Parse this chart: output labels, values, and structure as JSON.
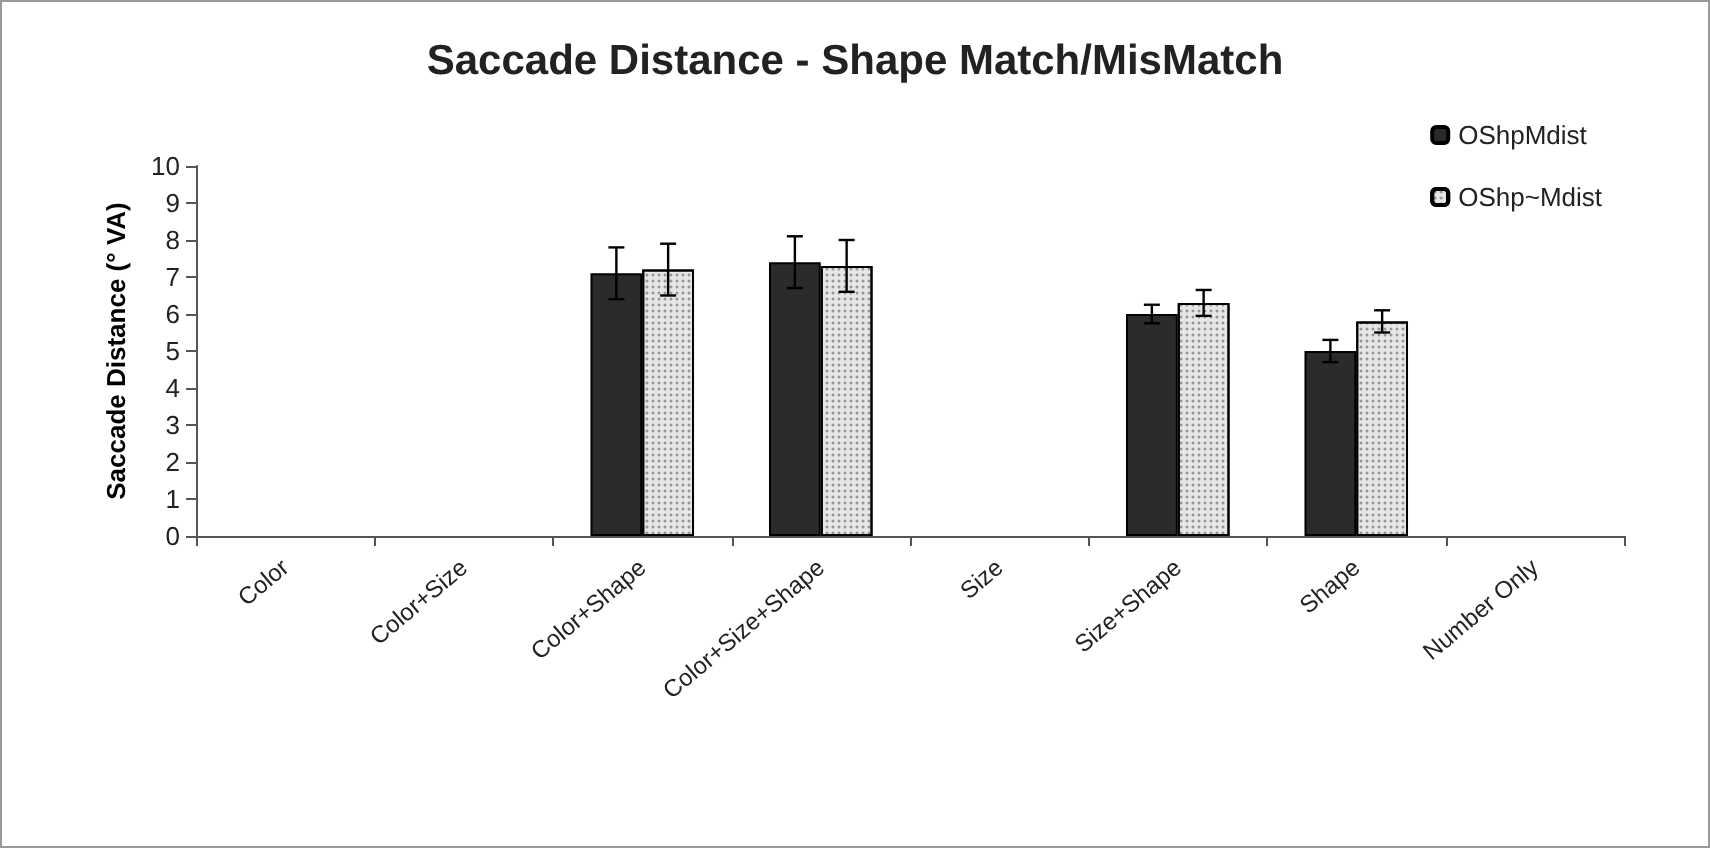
{
  "chart_data": {
    "type": "bar",
    "title": "Saccade Distance - Shape Match/MisMatch",
    "ylabel": "Saccade Distance (° VA)",
    "categories": [
      "Color",
      "Color+Size",
      "Color+Shape",
      "Color+Size+Shape",
      "Size",
      "Size+Shape",
      "Shape",
      "Number Only"
    ],
    "series": [
      {
        "name": "OShpMdist",
        "color": "#2b2b2b",
        "values": [
          null,
          null,
          7.1,
          7.4,
          null,
          6.0,
          5.0,
          null
        ],
        "errors": [
          null,
          null,
          0.7,
          0.7,
          null,
          0.25,
          0.3,
          null
        ]
      },
      {
        "name": "OShp~Mdist",
        "color": "#e6e6e6",
        "values": [
          null,
          null,
          7.2,
          7.3,
          null,
          6.3,
          5.8,
          null
        ],
        "errors": [
          null,
          null,
          0.7,
          0.7,
          null,
          0.35,
          0.3,
          null
        ]
      }
    ],
    "ylim": [
      0,
      10
    ],
    "yticks": [
      0,
      1,
      2,
      3,
      4,
      5,
      6,
      7,
      8,
      9,
      10
    ],
    "grid": false,
    "legend": "top right"
  }
}
